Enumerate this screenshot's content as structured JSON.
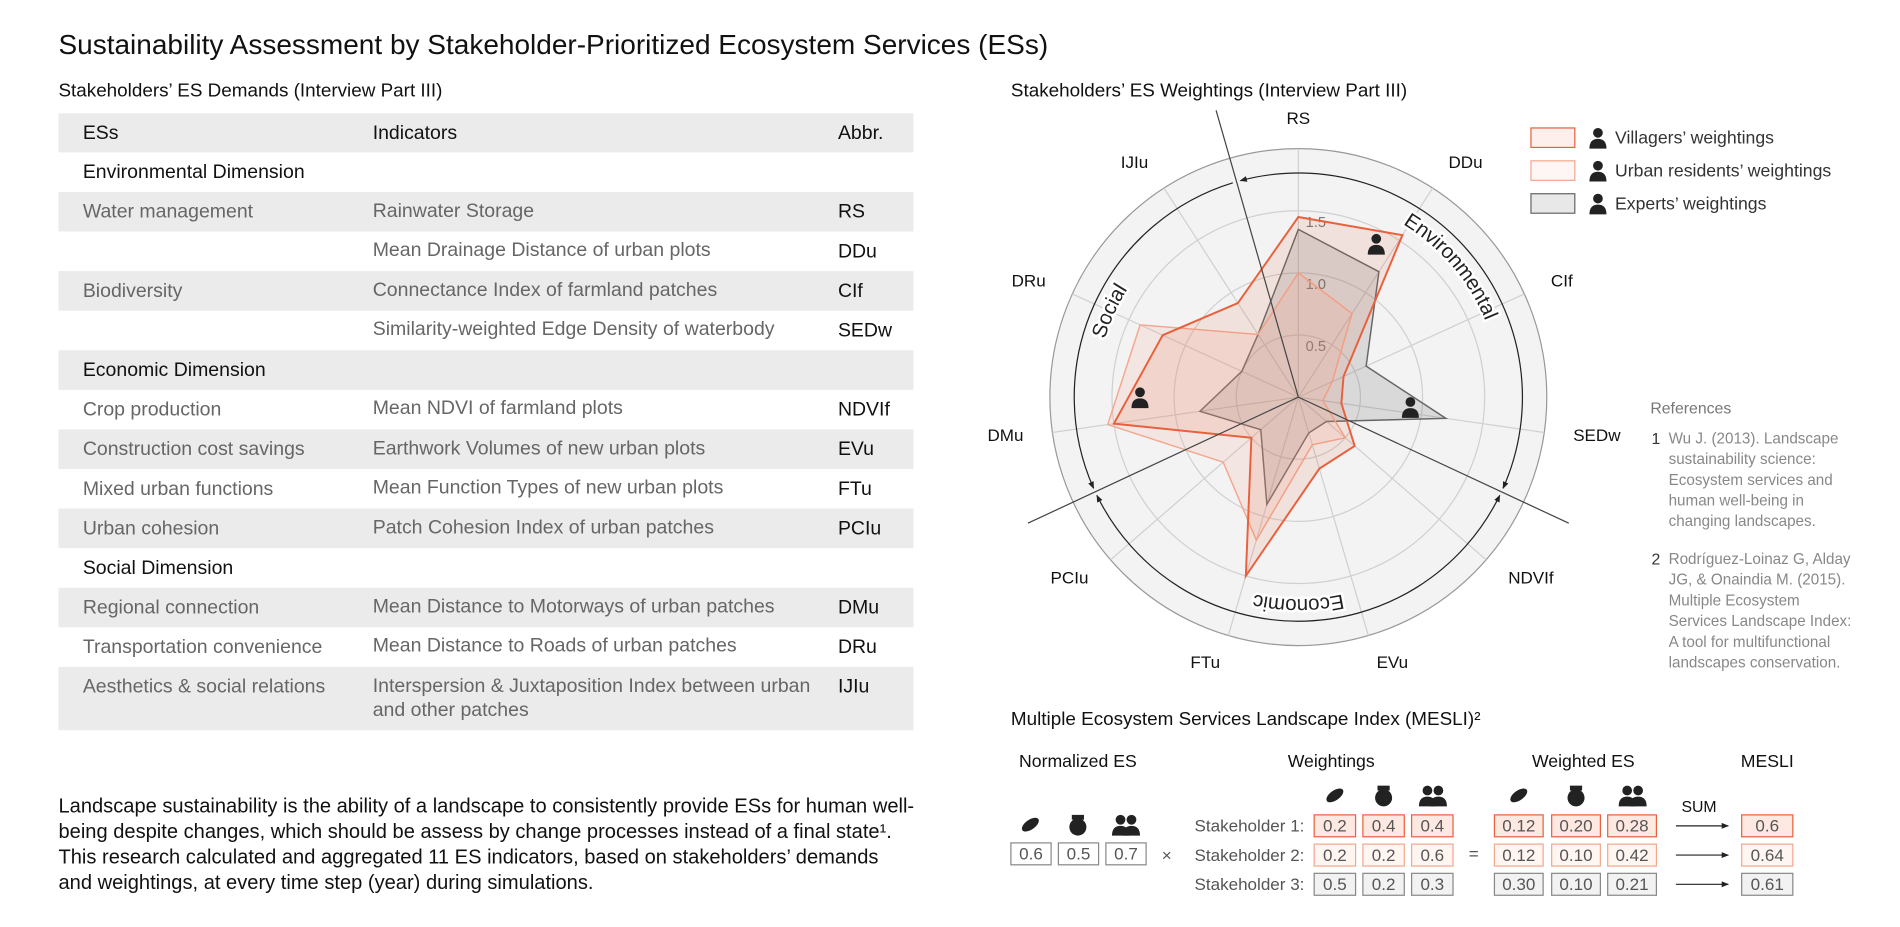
{
  "title": "Sustainability Assessment by Stakeholder-Prioritized Ecosystem Services (ESs)",
  "table": {
    "title": "Stakeholders’ ES Demands (Interview Part III)",
    "header": [
      "ESs",
      "Indicators",
      "Abbr."
    ],
    "rows": [
      {
        "dimension": "Environmental Dimension"
      },
      {
        "es": "Water management",
        "indicator": "Rainwater Storage",
        "abbr": "RS"
      },
      {
        "indicator": "Mean Drainage Distance of urban plots",
        "abbr": "DDu"
      },
      {
        "es": "Biodiversity",
        "indicator": "Connectance Index of farmland patches",
        "abbr": "CIf"
      },
      {
        "indicator": "Similarity-weighted Edge Density of waterbody",
        "abbr": "SEDw"
      },
      {
        "dimension": "Economic Dimension"
      },
      {
        "es": "Crop production",
        "indicator": "Mean NDVI of farmland plots",
        "abbr": "NDVIf"
      },
      {
        "es": "Construction cost savings",
        "indicator": "Earthwork Volumes of new urban plots",
        "abbr": "EVu"
      },
      {
        "es": "Mixed urban functions",
        "indicator": "Mean Function Types of new urban plots",
        "abbr": "FTu"
      },
      {
        "es": "Urban cohesion",
        "indicator": "Patch Cohesion Index of urban patches",
        "abbr": "PCIu"
      },
      {
        "dimension": "Social Dimension"
      },
      {
        "es": "Regional connection",
        "indicator": "Mean Distance to Motorways of urban patches",
        "abbr": "DMu"
      },
      {
        "es": "Transportation convenience",
        "indicator": "Mean Distance to Roads of urban patches",
        "abbr": "DRu"
      },
      {
        "es": "Aesthetics & social relations",
        "indicator": "Interspersion & Juxtaposition Index between urban and other patches",
        "abbr": "IJIu"
      }
    ]
  },
  "chart_data": {
    "type": "radar",
    "title": "Stakeholders’ ES Weightings (Interview Part III)",
    "categories": [
      "RS",
      "DDu",
      "CIf",
      "SEDw",
      "NDVIf",
      "EVu",
      "FTu",
      "PCIu",
      "DMu",
      "DRu",
      "IJIu"
    ],
    "series": [
      {
        "name": "Villagers’ weightings",
        "color": "#e8603c",
        "values": [
          1.45,
          1.55,
          0.4,
          0.35,
          0.6,
          0.6,
          1.5,
          0.5,
          1.5,
          1.2,
          0.9
        ]
      },
      {
        "name": "Urban residents’ weightings",
        "color": "#f4a78f",
        "values": [
          1.0,
          0.8,
          0.3,
          0.2,
          0.5,
          0.4,
          1.2,
          0.8,
          1.55,
          1.4,
          0.6
        ]
      },
      {
        "name": "Experts’ weightings",
        "color": "#666666",
        "values": [
          1.35,
          1.2,
          0.6,
          1.2,
          0.3,
          0.3,
          0.9,
          0.4,
          0.8,
          0.5,
          0.6
        ]
      }
    ],
    "ylim": [
      0,
      2
    ],
    "yticks": [
      0.5,
      {
        "value": 1,
        "label": "1.0"
      },
      1.5
    ],
    "grid": true,
    "dimensions": [
      "Environmental",
      "Economic",
      "Social"
    ]
  },
  "description": "Landscape sustainability is the ability of a landscape to consistently provide ESs for human well-being despite changes, which should be assess by change processes instead of a final state¹. This research calculated and aggregated 11 ES indicators, based on stakeholders’ demands and weightings, at every time step (year) during simulations.",
  "references": {
    "title": "References",
    "items": [
      {
        "number": "1",
        "text": "Wu J. (2013). Landscape sustainability science: Ecosystem services and human well-being in changing landscapes."
      },
      {
        "number": "2",
        "text": "Rodríguez-Loinaz G, Alday JG, & Onaindia M. (2015). Multiple Ecosystem Services Landscape Index: A tool for multifunctional landscapes conservation."
      }
    ]
  },
  "mesli": {
    "title": "Multiple Ecosystem Services Landscape Index (MESLI)²",
    "headers": [
      "Normalized ES",
      "Weightings",
      "Weighted ES",
      "MESLI"
    ],
    "normalized": [
      "0.6",
      "0.5",
      "0.7"
    ],
    "operators": [
      "×",
      "="
    ],
    "sum_label": "SUM",
    "stakeholders": [
      {
        "label": "Stakeholder 1:",
        "weights": [
          "0.2",
          "0.4",
          "0.4"
        ],
        "weighted": [
          "0.12",
          "0.20",
          "0.28"
        ],
        "mesli": "0.6"
      },
      {
        "label": "Stakeholder 2:",
        "weights": [
          "0.2",
          "0.2",
          "0.6"
        ],
        "weighted": [
          "0.12",
          "0.10",
          "0.42"
        ],
        "mesli": "0.64"
      },
      {
        "label": "Stakeholder 3:",
        "weights": [
          "0.5",
          "0.2",
          "0.3"
        ],
        "weighted": [
          "0.30",
          "0.10",
          "0.21"
        ],
        "mesli": "0.61"
      }
    ]
  }
}
